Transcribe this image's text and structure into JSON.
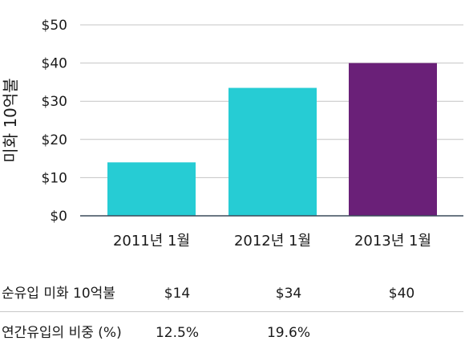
{
  "chart_data": {
    "type": "bar",
    "categories": [
      "2011년 1월",
      "2012년 1월",
      "2013년 1월"
    ],
    "values": [
      14,
      33.5,
      40
    ],
    "colors": [
      "#26ccd4",
      "#26ccd4",
      "#6a2078"
    ],
    "ylabel": "미화 10억불",
    "ylim": [
      0,
      50
    ],
    "yticks": [
      "$0",
      "$10",
      "$20",
      "$30",
      "$40",
      "$50"
    ],
    "grid": true
  },
  "table": {
    "rows": [
      {
        "label": "순유입 미화 10억불",
        "cells": [
          "$14",
          "$34",
          "$40"
        ]
      },
      {
        "label": "연간유입의 비중 (%)",
        "cells": [
          "12.5%",
          "19.6%",
          ""
        ]
      }
    ]
  }
}
